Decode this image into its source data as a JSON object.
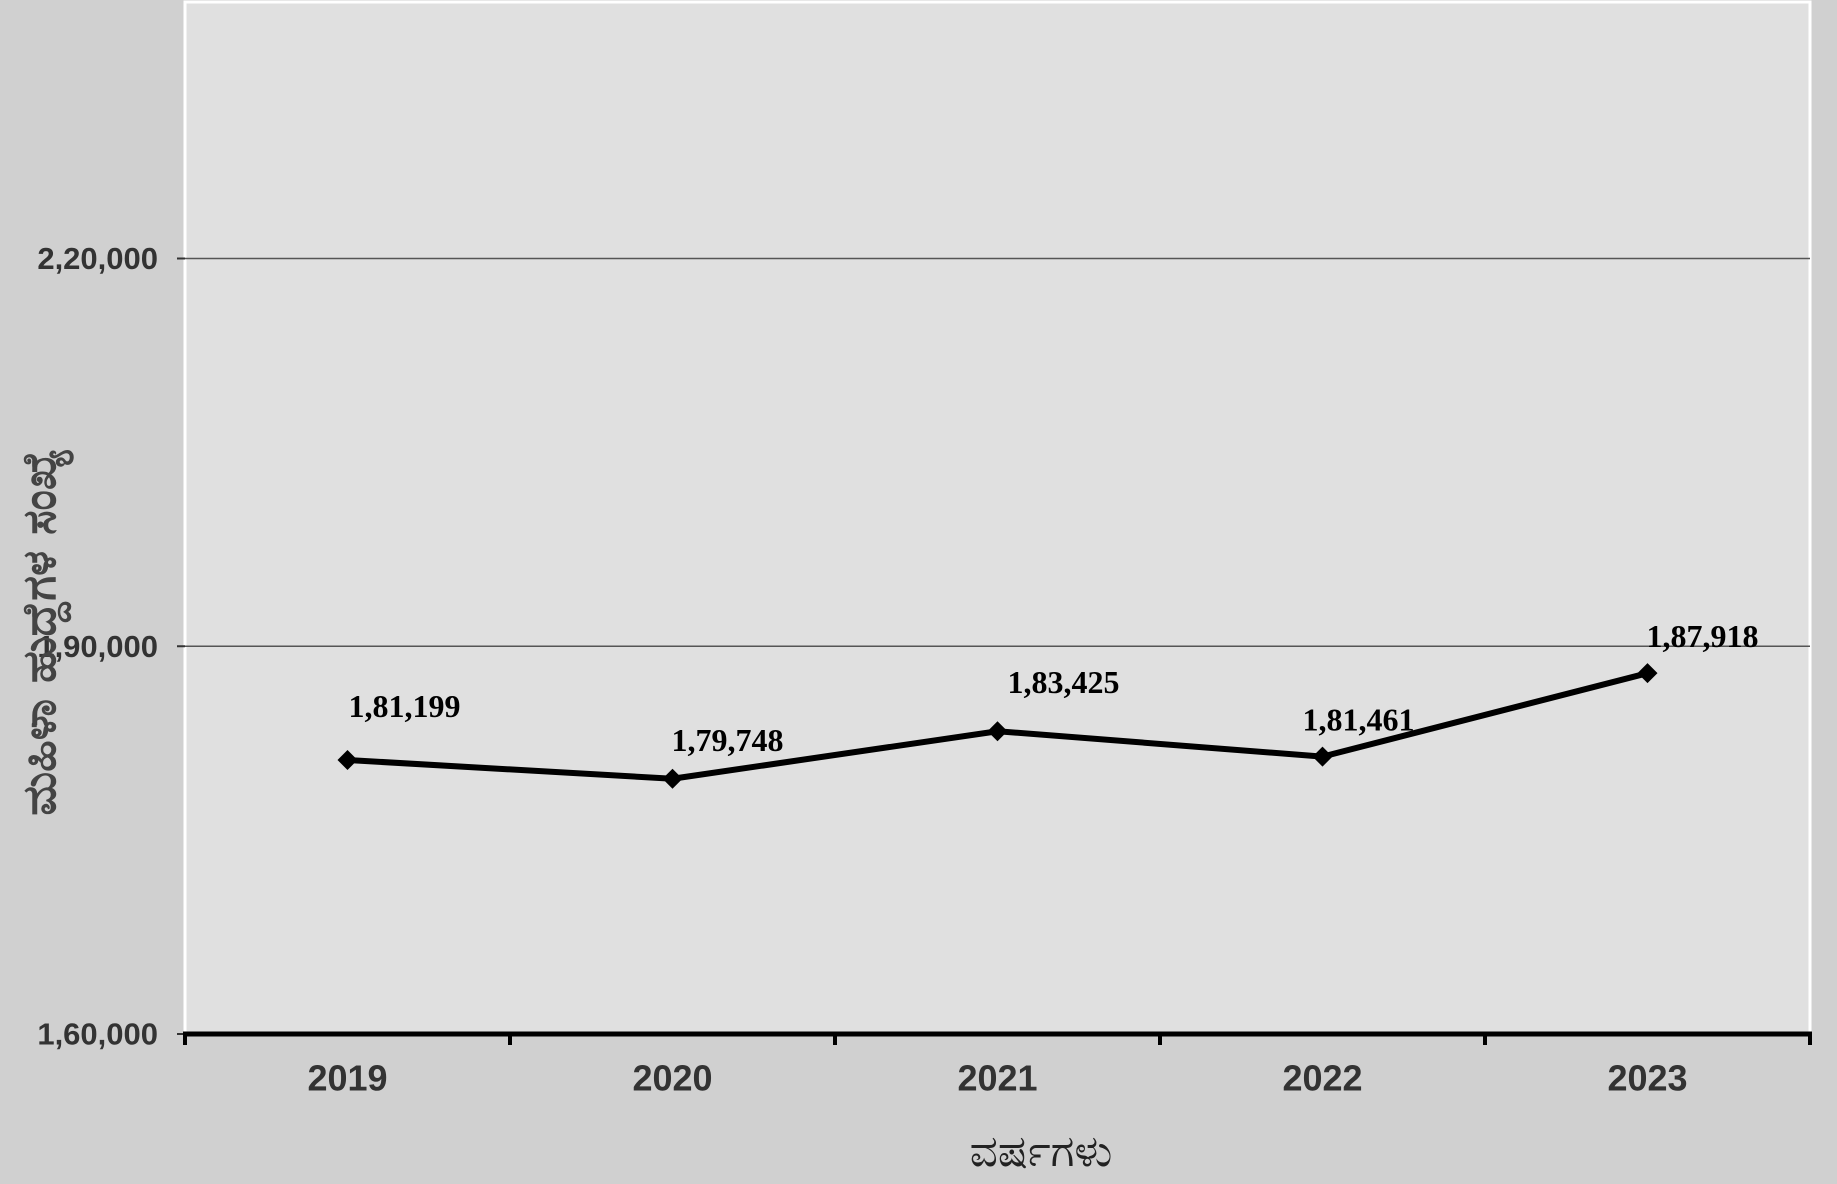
{
  "chart_data": {
    "type": "line",
    "categories": [
      "2019",
      "2020",
      "2021",
      "2022",
      "2023"
    ],
    "series": [
      {
        "values": [
          181199,
          179748,
          183425,
          181461,
          187918
        ],
        "labels": [
          "1,81,199",
          "1,79,748",
          "1,83,425",
          "1,81,461",
          "1,87,918"
        ]
      }
    ],
    "xlabel": "ವರ್ಷಗಳು",
    "ylabel": "ಮಹಿಳಾ ಹುದ್ದೆಗಳ ಸಂಖ್ಯೆ",
    "ylim": [
      160000,
      240000
    ],
    "yticks": [
      160000,
      190000,
      220000
    ],
    "ytick_labels": [
      "1,60,000",
      "1,90,000",
      "2,20,000"
    ],
    "grid": true,
    "legend": false,
    "colors": {
      "page_bg": "#d0d0d0",
      "plot_bg": "#e0e0e0",
      "grid": "#555555",
      "line": "#000000",
      "marker": "#000000"
    }
  }
}
